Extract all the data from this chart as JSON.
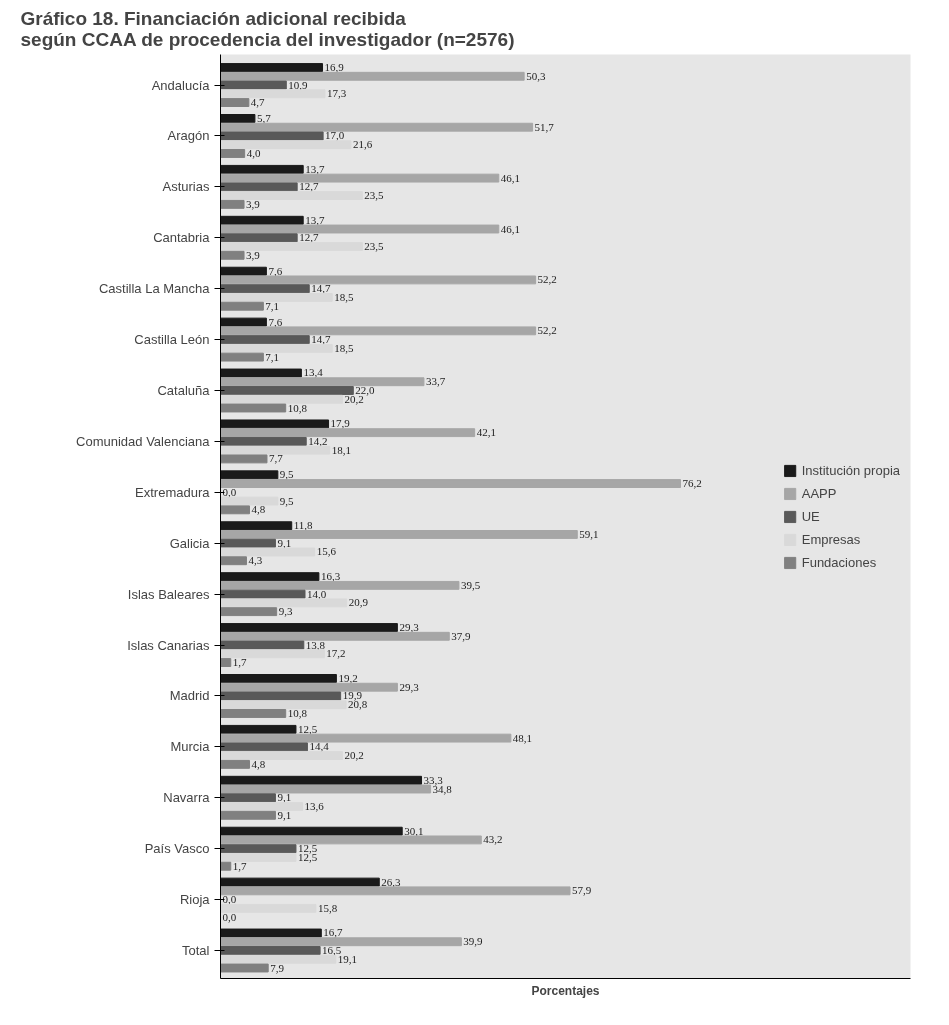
{
  "chart_data": {
    "type": "bar",
    "orientation": "horizontal",
    "title": "Gráfico 18. Financiación adicional recibida\nsegún CCAA de procedencia del investigador (n=2576)",
    "xlabel": "Porcentajes",
    "categories": [
      "Andalucía",
      "Aragón",
      "Asturias",
      "Cantabria",
      "Castilla La Mancha",
      "Castilla León",
      "Cataluña",
      "Comunidad Valenciana",
      "Extremadura",
      "Galicia",
      "Islas Baleares",
      "Islas Canarias",
      "Madrid",
      "Murcia",
      "Navarra",
      "País Vasco",
      "Rioja",
      "Total"
    ],
    "series": [
      {
        "name": "Institución propia",
        "color": "#1a1a1a",
        "values": [
          16.9,
          5.7,
          13.7,
          13.7,
          7.6,
          7.6,
          13.4,
          17.9,
          9.5,
          11.8,
          16.3,
          29.3,
          19.2,
          12.5,
          33.3,
          30.1,
          26.3,
          16.7
        ],
        "value_labels": [
          "16,9",
          "5,7",
          "13,7",
          "13,7",
          "7,6",
          "7,6",
          "13,4",
          "17,9",
          "9,5",
          "11,8",
          "16,3",
          "29,3",
          "19,2",
          "12,5",
          "33,3",
          "30,1",
          "26,3",
          "16,7"
        ]
      },
      {
        "name": "AAPP",
        "color": "#a6a6a6",
        "values": [
          50.3,
          51.7,
          46.1,
          46.1,
          52.2,
          52.2,
          33.7,
          42.1,
          76.2,
          59.1,
          39.5,
          37.9,
          29.3,
          48.1,
          34.8,
          43.2,
          57.9,
          39.9
        ],
        "value_labels": [
          "50,3",
          "51,7",
          "46,1",
          "46,1",
          "52,2",
          "52,2",
          "33,7",
          "42,1",
          "76,2",
          "59,1",
          "39,5",
          "37,9",
          "29,3",
          "48,1",
          "34,8",
          "43,2",
          "57,9",
          "39,9"
        ]
      },
      {
        "name": "UE",
        "color": "#595959",
        "values": [
          10.9,
          17.0,
          12.7,
          12.7,
          14.7,
          14.7,
          22.0,
          14.2,
          0.0,
          9.1,
          14.0,
          13.8,
          19.9,
          14.4,
          9.1,
          12.5,
          0.0,
          16.5
        ],
        "value_labels": [
          "10,9",
          "17,0",
          "12,7",
          "12,7",
          "14,7",
          "14,7",
          "22,0",
          "14,2",
          "0,0",
          "9,1",
          "14,0",
          "13,8",
          "19,9",
          "14,4",
          "9,1",
          "12,5",
          "0,0",
          "16,5"
        ]
      },
      {
        "name": "Empresas",
        "color": "#d9d9d9",
        "values": [
          17.3,
          21.6,
          23.5,
          23.5,
          18.5,
          18.5,
          20.2,
          18.1,
          9.5,
          15.6,
          20.9,
          17.2,
          20.8,
          20.2,
          13.6,
          12.5,
          15.8,
          19.1
        ],
        "value_labels": [
          "17,3",
          "21,6",
          "23,5",
          "23,5",
          "18,5",
          "18,5",
          "20,2",
          "18,1",
          "9,5",
          "15,6",
          "20,9",
          "17,2",
          "20,8",
          "20,2",
          "13,6",
          "12,5",
          "15,8",
          "19,1"
        ]
      },
      {
        "name": "Fundaciones",
        "color": "#808080",
        "values": [
          4.7,
          4.0,
          3.9,
          3.9,
          7.1,
          7.1,
          10.8,
          7.7,
          4.8,
          4.3,
          9.3,
          1.7,
          10.8,
          4.8,
          9.1,
          1.7,
          0.0,
          7.9
        ],
        "value_labels": [
          "4,7",
          "4,0",
          "3,9",
          "3,9",
          "7,1",
          "7,1",
          "10,8",
          "7,7",
          "4,8",
          "4,3",
          "9,3",
          "1,7",
          "10,8",
          "4,8",
          "9,1",
          "1,7",
          "0,0",
          "7,9"
        ]
      }
    ],
    "legend": "right",
    "grid": false,
    "tick_labels": "y"
  }
}
